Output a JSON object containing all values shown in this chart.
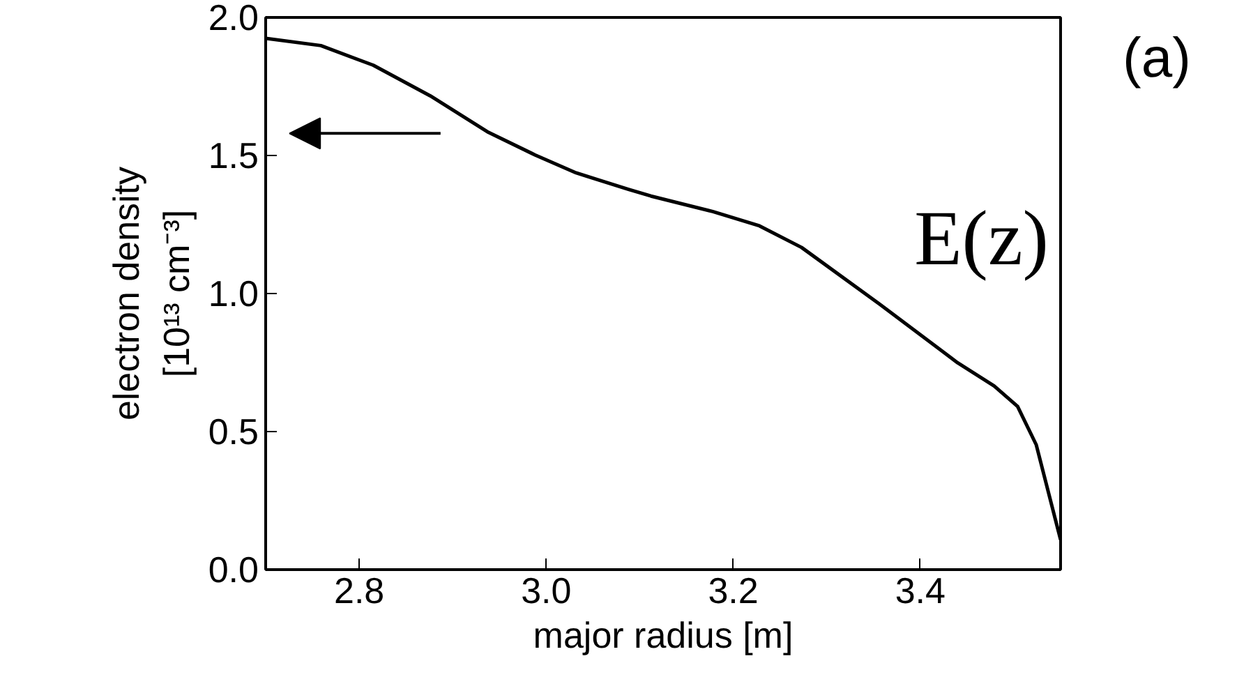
{
  "chart_data": {
    "type": "line",
    "xlabel": "major radius [m]",
    "ylabel": "electron density\n[10¹³ cm⁻³]",
    "x": [
      2.7,
      2.759,
      2.815,
      2.876,
      2.937,
      2.988,
      3.032,
      3.088,
      3.112,
      3.178,
      3.228,
      3.273,
      3.356,
      3.44,
      3.479,
      3.504,
      3.524,
      3.55
    ],
    "series": [
      {
        "color": "#000000",
        "values": [
          1.924,
          1.898,
          1.827,
          1.716,
          1.586,
          1.502,
          1.437,
          1.377,
          1.353,
          1.297,
          1.245,
          1.167,
          0.963,
          0.749,
          0.665,
          0.591,
          0.452,
          0.108
        ]
      }
    ],
    "xlim": [
      2.7,
      3.55
    ],
    "ylim": [
      0.0,
      2.0
    ],
    "xticks": [
      {
        "value": 2.8,
        "label": "2.8"
      },
      {
        "value": 3.0,
        "label": "3.0"
      },
      {
        "value": 3.2,
        "label": "3.2"
      },
      {
        "value": 3.4,
        "label": "3.4"
      }
    ],
    "yticks": [
      {
        "value": 0.0,
        "label": "0.0"
      },
      {
        "value": 0.5,
        "label": "0.5"
      },
      {
        "value": 1.0,
        "label": "1.0"
      },
      {
        "value": 1.5,
        "label": "1.5"
      },
      {
        "value": 2.0,
        "label": "2.0"
      }
    ],
    "annotations": [
      "E(z)",
      "(a)"
    ],
    "grid": false,
    "marker": "none",
    "line_style": "solid"
  }
}
